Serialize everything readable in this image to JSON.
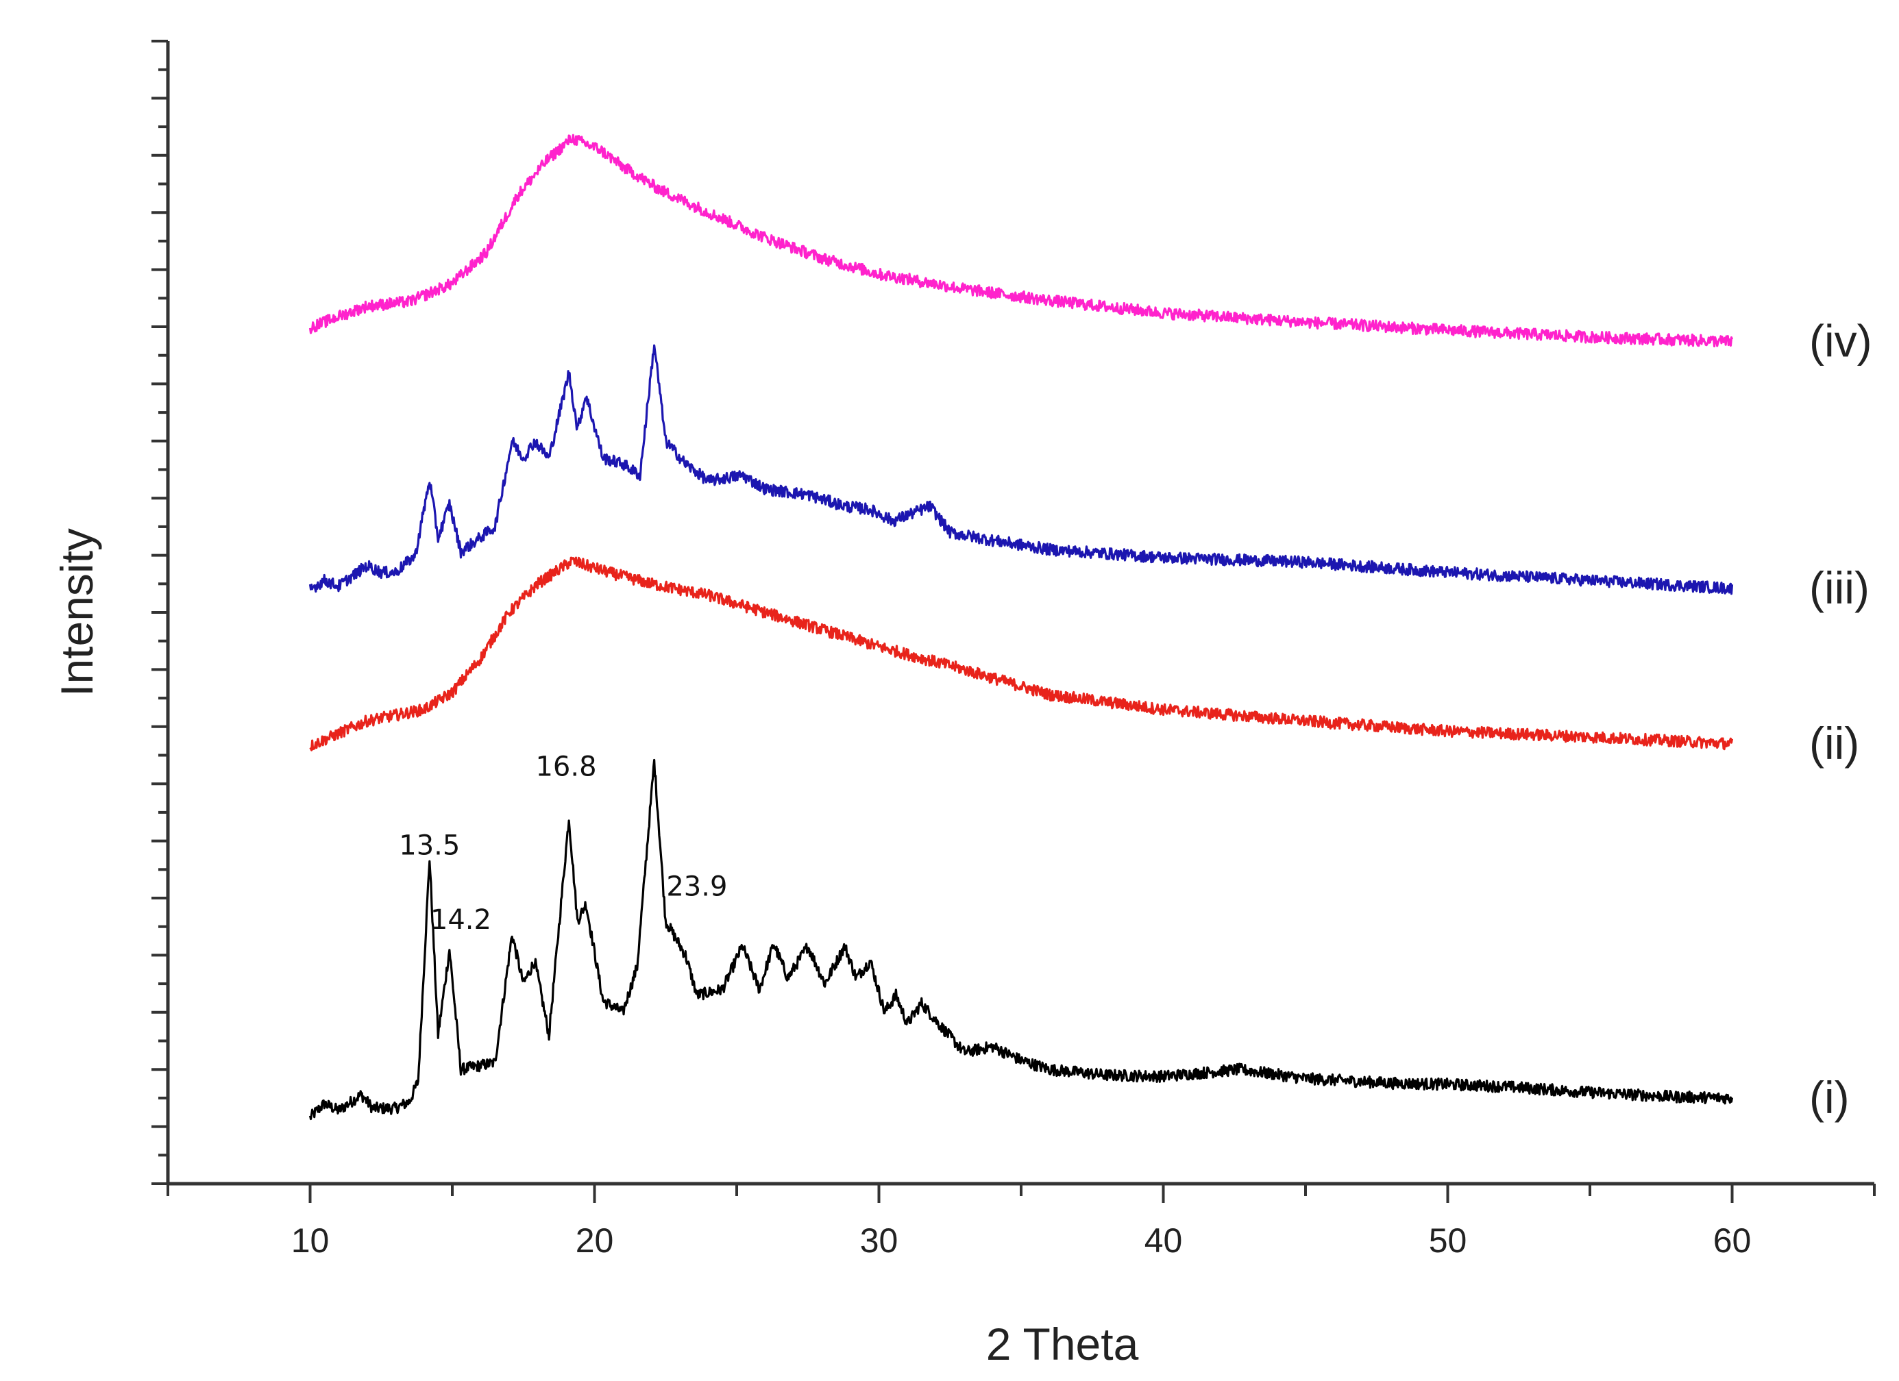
{
  "chart_data": {
    "type": "line",
    "xlabel": "2 Theta",
    "ylabel": "Intensity",
    "xlim": [
      5,
      65
    ],
    "ylim": [
      0,
      100
    ],
    "x_ticks": [
      10,
      20,
      30,
      40,
      50,
      60
    ],
    "x_tick_labels": [
      "10",
      "20",
      "30",
      "40",
      "50",
      "60"
    ],
    "grid": false,
    "legend": "none",
    "series": [
      {
        "name": "(i)",
        "color": "#000000",
        "baseline": 4,
        "x_range": [
          10,
          60
        ],
        "points": [
          [
            10,
            1.8
          ],
          [
            10.5,
            3.0
          ],
          [
            11,
            2.4
          ],
          [
            11.8,
            3.8
          ],
          [
            12.2,
            2.6
          ],
          [
            13,
            2.6
          ],
          [
            13.5,
            3.2
          ],
          [
            13.8,
            5
          ],
          [
            14.2,
            24.5
          ],
          [
            14.5,
            9
          ],
          [
            14.9,
            16.5
          ],
          [
            15.3,
            6
          ],
          [
            16.5,
            6.6
          ],
          [
            17.1,
            17.8
          ],
          [
            17.5,
            13.5
          ],
          [
            17.9,
            15.5
          ],
          [
            18.4,
            9
          ],
          [
            19.1,
            28
          ],
          [
            19.4,
            19
          ],
          [
            19.7,
            20.5
          ],
          [
            20.3,
            12
          ],
          [
            21,
            11
          ],
          [
            21.5,
            15
          ],
          [
            22.1,
            33
          ],
          [
            22.5,
            19
          ],
          [
            23.2,
            16
          ],
          [
            23.6,
            12.5
          ],
          [
            24.5,
            13
          ],
          [
            25.2,
            16.8
          ],
          [
            25.8,
            13
          ],
          [
            26.3,
            17
          ],
          [
            26.8,
            14
          ],
          [
            27.5,
            16.8
          ],
          [
            28.1,
            13.5
          ],
          [
            28.8,
            16.8
          ],
          [
            29.2,
            14
          ],
          [
            29.7,
            15.5
          ],
          [
            30.2,
            11
          ],
          [
            30.6,
            12.5
          ],
          [
            31,
            10
          ],
          [
            31.5,
            11.8
          ],
          [
            32.1,
            10
          ],
          [
            33,
            7.5
          ],
          [
            34,
            8
          ],
          [
            35,
            6.8
          ],
          [
            36,
            6
          ],
          [
            38,
            5.5
          ],
          [
            40,
            5.4
          ],
          [
            42.7,
            6
          ],
          [
            45,
            5.2
          ],
          [
            48,
            4.8
          ],
          [
            50,
            4.7
          ],
          [
            52,
            4.5
          ],
          [
            55,
            4.0
          ],
          [
            58,
            3.6
          ],
          [
            60,
            3.5
          ]
        ]
      },
      {
        "name": "(ii)",
        "color": "#e8231b",
        "baseline": 37,
        "x_range": [
          10,
          60
        ],
        "points": [
          [
            10,
            1.3
          ],
          [
            12,
            3.5
          ],
          [
            14,
            4.5
          ],
          [
            15,
            6
          ],
          [
            16,
            9
          ],
          [
            17,
            13
          ],
          [
            18,
            15.5
          ],
          [
            19.2,
            17.5
          ],
          [
            20.5,
            16.5
          ],
          [
            22,
            15.5
          ],
          [
            24,
            14.5
          ],
          [
            26,
            13
          ],
          [
            28,
            11.5
          ],
          [
            30,
            10
          ],
          [
            33,
            8
          ],
          [
            36,
            5.8
          ],
          [
            40,
            4.5
          ],
          [
            45,
            3.5
          ],
          [
            50,
            2.6
          ],
          [
            55,
            2.1
          ],
          [
            60,
            1.5
          ]
        ]
      },
      {
        "name": "(iii)",
        "color": "#1c16b0",
        "baseline": 52,
        "x_range": [
          10,
          60
        ],
        "points": [
          [
            10,
            0
          ],
          [
            10.5,
            0.8
          ],
          [
            11,
            0.3
          ],
          [
            12,
            2.1
          ],
          [
            12.5,
            1.5
          ],
          [
            13,
            1.5
          ],
          [
            13.7,
            3
          ],
          [
            14.2,
            9.6
          ],
          [
            14.5,
            4.5
          ],
          [
            14.9,
            7.5
          ],
          [
            15.3,
            3.3
          ],
          [
            16.5,
            5.5
          ],
          [
            17.1,
            13
          ],
          [
            17.5,
            11.5
          ],
          [
            17.9,
            13
          ],
          [
            18.4,
            11.5
          ],
          [
            19.1,
            19
          ],
          [
            19.4,
            14
          ],
          [
            19.7,
            17
          ],
          [
            20.3,
            11.5
          ],
          [
            21,
            11
          ],
          [
            21.6,
            10
          ],
          [
            22.1,
            21.5
          ],
          [
            22.5,
            13
          ],
          [
            23.2,
            11
          ],
          [
            24,
            9.5
          ],
          [
            25.2,
            10
          ],
          [
            26,
            8.8
          ],
          [
            27.5,
            8.3
          ],
          [
            28.8,
            7.3
          ],
          [
            29.7,
            7
          ],
          [
            30.5,
            6
          ],
          [
            31.8,
            7.3
          ],
          [
            32.5,
            5
          ],
          [
            34,
            4.3
          ],
          [
            36,
            3.5
          ],
          [
            40,
            2.8
          ],
          [
            45,
            2.4
          ],
          [
            50,
            1.5
          ],
          [
            55,
            0.8
          ],
          [
            60,
            0.1
          ]
        ]
      },
      {
        "name": "(iv)",
        "color": "#ff22cc",
        "baseline": 74,
        "x_range": [
          10,
          60
        ],
        "points": [
          [
            10,
            0.9
          ],
          [
            11,
            1.9
          ],
          [
            12,
            2.8
          ],
          [
            13.5,
            3.2
          ],
          [
            15,
            4.8
          ],
          [
            16.2,
            7.5
          ],
          [
            17.3,
            12.5
          ],
          [
            18.3,
            15.5
          ],
          [
            19.2,
            17.5
          ],
          [
            20.2,
            16.5
          ],
          [
            21,
            15
          ],
          [
            22.3,
            13
          ],
          [
            24,
            11
          ],
          [
            26,
            8.8
          ],
          [
            28,
            7
          ],
          [
            30,
            5.6
          ],
          [
            33,
            4.3
          ],
          [
            36,
            3.3
          ],
          [
            40,
            2.2
          ],
          [
            45,
            1.4
          ],
          [
            50,
            0.7
          ],
          [
            55,
            0.1
          ],
          [
            60,
            -0.3
          ]
        ]
      }
    ],
    "annotations": [
      {
        "text": "13.5",
        "x": 14.2,
        "y": 28.8
      },
      {
        "text": "14.2",
        "x": 15.3,
        "y": 22.3
      },
      {
        "text": "16.8",
        "x": 19.0,
        "y": 35.7
      },
      {
        "text": "23.9",
        "x": 23.6,
        "y": 25.2
      }
    ]
  }
}
